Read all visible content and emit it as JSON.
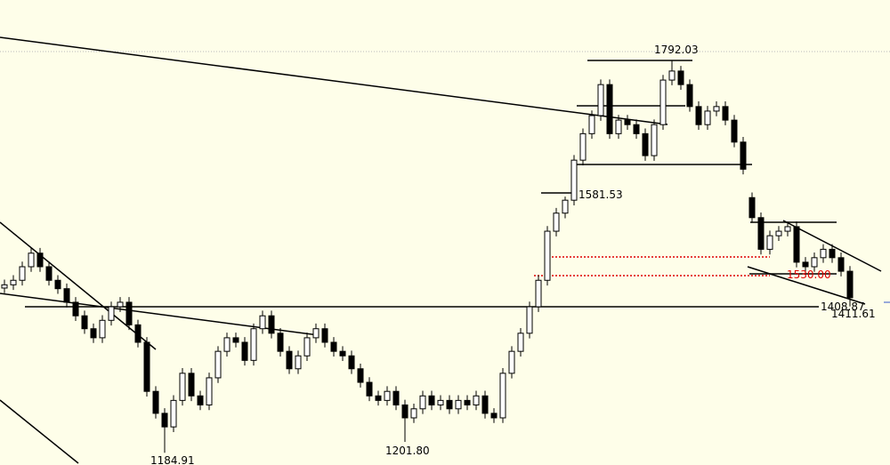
{
  "chart_data": {
    "type": "candlestick",
    "annotations": [
      "1792.03",
      "1581.53",
      "1408.87",
      "1411.61",
      "1201.80",
      "1184.91",
      "1530.00"
    ],
    "ylim": [
      1166,
      1886
    ],
    "background": "#fefee9",
    "up_color": "#ffffff",
    "down_color": "#000000",
    "outline_color": "#000000",
    "open": [
      1440,
      1445,
      1452,
      1473,
      1494,
      1473,
      1452,
      1439,
      1418,
      1397,
      1377,
      1363,
      1390,
      1411,
      1418,
      1383,
      1356,
      1280,
      1246,
      1225,
      1266,
      1308,
      1273,
      1259,
      1301,
      1342,
      1363,
      1356,
      1328,
      1377,
      1397,
      1370,
      1342,
      1315,
      1335,
      1363,
      1377,
      1356,
      1342,
      1335,
      1315,
      1294,
      1273,
      1266,
      1280,
      1259,
      1239,
      1253,
      1273,
      1259,
      1266,
      1253,
      1266,
      1259,
      1273,
      1246,
      1239,
      1308,
      1342,
      1370,
      1411,
      1452,
      1528,
      1556,
      1576,
      1638,
      1679,
      1707,
      1755,
      1679,
      1700,
      1693,
      1679,
      1645,
      1693,
      1762,
      1776,
      1755,
      1721,
      1693,
      1714,
      1721,
      1700,
      1666,
      1580,
      1549,
      1500,
      1521,
      1528,
      1535,
      1480,
      1473,
      1487,
      1500,
      1487,
      1466
    ],
    "high": [
      1453,
      1460,
      1481,
      1502,
      1502,
      1481,
      1460,
      1447,
      1426,
      1405,
      1385,
      1398,
      1419,
      1426,
      1426,
      1391,
      1364,
      1288,
      1254,
      1274,
      1316,
      1316,
      1281,
      1309,
      1350,
      1371,
      1371,
      1364,
      1385,
      1405,
      1405,
      1378,
      1350,
      1343,
      1371,
      1385,
      1385,
      1364,
      1350,
      1343,
      1323,
      1302,
      1281,
      1288,
      1288,
      1267,
      1261,
      1281,
      1281,
      1274,
      1274,
      1274,
      1274,
      1281,
      1281,
      1254,
      1316,
      1350,
      1378,
      1419,
      1460,
      1536,
      1564,
      1581.53,
      1646,
      1687,
      1715,
      1763,
      1763,
      1708,
      1708,
      1701,
      1687,
      1701,
      1770,
      1792.03,
      1784,
      1763,
      1729,
      1722,
      1729,
      1729,
      1708,
      1674,
      1588,
      1557,
      1529,
      1536,
      1543,
      1543,
      1488,
      1495,
      1508,
      1508,
      1495,
      1474
    ],
    "low": [
      1432,
      1437,
      1444,
      1465,
      1465,
      1444,
      1431,
      1410,
      1389,
      1369,
      1355,
      1355,
      1382,
      1403,
      1375,
      1348,
      1272,
      1238,
      1184.91,
      1217,
      1258,
      1265,
      1251,
      1251,
      1293,
      1334,
      1348,
      1320,
      1320,
      1369,
      1362,
      1334,
      1307,
      1307,
      1327,
      1355,
      1348,
      1334,
      1327,
      1307,
      1286,
      1265,
      1258,
      1258,
      1251,
      1201.8,
      1231,
      1245,
      1251,
      1251,
      1245,
      1245,
      1251,
      1251,
      1238,
      1231,
      1231,
      1300,
      1334,
      1362,
      1403,
      1444,
      1520,
      1548,
      1568,
      1630,
      1671,
      1699,
      1671,
      1671,
      1685,
      1671,
      1637,
      1637,
      1685,
      1754,
      1747,
      1713,
      1685,
      1685,
      1706,
      1692,
      1658,
      1616,
      1541,
      1492,
      1492,
      1513,
      1520,
      1472,
      1465,
      1465,
      1479,
      1479,
      1458,
      1411.61
    ],
    "close": [
      1445,
      1452,
      1473,
      1494,
      1473,
      1452,
      1439,
      1418,
      1397,
      1377,
      1363,
      1390,
      1411,
      1418,
      1383,
      1356,
      1280,
      1246,
      1225,
      1266,
      1308,
      1273,
      1259,
      1301,
      1342,
      1363,
      1356,
      1328,
      1377,
      1397,
      1370,
      1342,
      1315,
      1335,
      1363,
      1377,
      1356,
      1342,
      1335,
      1315,
      1294,
      1273,
      1266,
      1280,
      1259,
      1239,
      1253,
      1273,
      1259,
      1266,
      1253,
      1266,
      1259,
      1273,
      1246,
      1239,
      1308,
      1342,
      1370,
      1411,
      1452,
      1528,
      1556,
      1576,
      1638,
      1679,
      1707,
      1755,
      1679,
      1700,
      1693,
      1679,
      1645,
      1693,
      1762,
      1776,
      1755,
      1721,
      1693,
      1714,
      1721,
      1700,
      1666,
      1624,
      1549,
      1500,
      1521,
      1528,
      1535,
      1480,
      1473,
      1487,
      1500,
      1487,
      1466,
      1425
    ]
  }
}
